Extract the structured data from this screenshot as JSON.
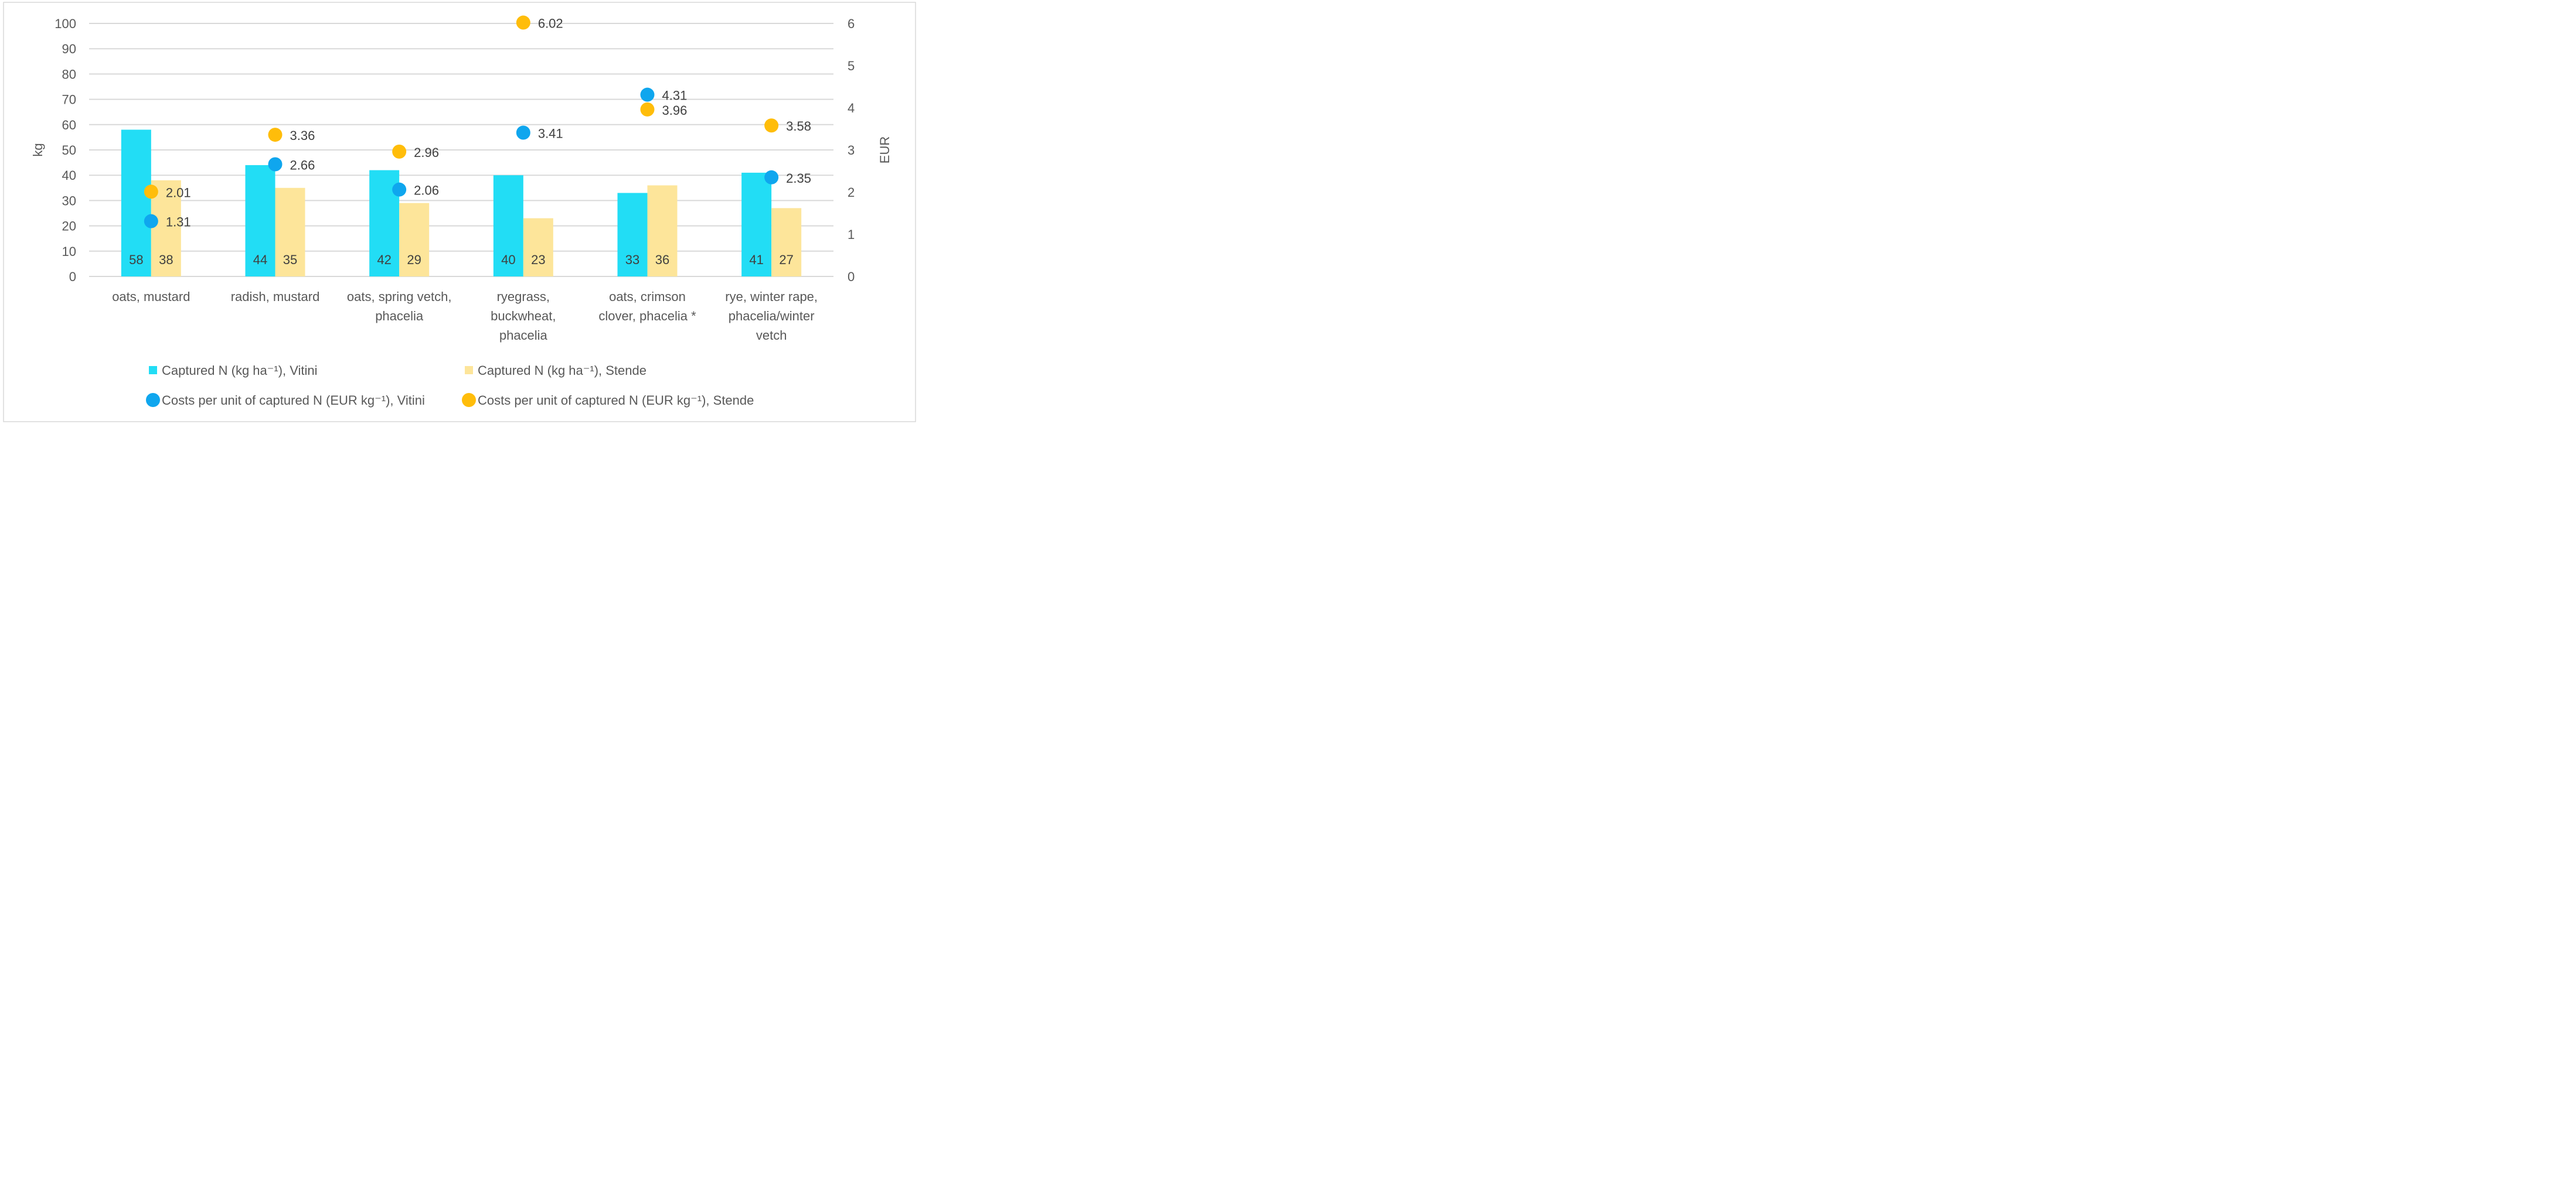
{
  "chart_data": {
    "type": "bar",
    "title": "",
    "ylabel_left": "kg",
    "ylabel_right": "EUR",
    "ylim_left": [
      0,
      100
    ],
    "ylim_right": [
      0,
      6
    ],
    "yticks_left": [
      "0",
      "10",
      "20",
      "30",
      "40",
      "50",
      "60",
      "70",
      "80",
      "90",
      "100"
    ],
    "yticks_right": [
      "0",
      "1",
      "2",
      "3",
      "4",
      "5",
      "6"
    ],
    "categories": [
      [
        "oats, mustard"
      ],
      [
        "radish, mustard"
      ],
      [
        "oats, spring vetch,",
        "phacelia"
      ],
      [
        "ryegrass,",
        "buckwheat,",
        "phacelia"
      ],
      [
        "oats, crimson",
        "clover, phacelia *"
      ],
      [
        "rye, winter rape,",
        "phacelia/winter",
        "vetch"
      ]
    ],
    "grid": true,
    "bar_series": [
      {
        "name": "Captured N (kg ha⁻¹), Vitini",
        "color": "#22DDF5",
        "axis": "left",
        "values": [
          58,
          44,
          42,
          40,
          33,
          41
        ],
        "labels": [
          "58",
          "44",
          "42",
          "40",
          "33",
          "41"
        ]
      },
      {
        "name": "Captured N (kg ha⁻¹), Stende",
        "color": "#FDE59A",
        "axis": "left",
        "values": [
          38,
          35,
          29,
          23,
          36,
          27
        ],
        "labels": [
          "38",
          "35",
          "29",
          "23",
          "36",
          "27"
        ]
      }
    ],
    "point_series": [
      {
        "name": "Costs per unit of captured N (EUR kg⁻¹), Vitini",
        "color": "#0FA6EE",
        "axis": "right",
        "values": [
          1.31,
          2.66,
          2.06,
          3.41,
          4.31,
          2.35
        ],
        "labels": [
          "1.31",
          "2.66",
          "2.06",
          "3.41",
          "4.31",
          "2.35"
        ]
      },
      {
        "name": "Costs per unit of captured N (EUR kg⁻¹), Stende",
        "color": "#FFBD0A",
        "axis": "right",
        "values": [
          2.01,
          3.36,
          2.96,
          6.02,
          3.96,
          3.58
        ],
        "labels": [
          "2.01",
          "3.36",
          "2.96",
          "6.02",
          "3.96",
          "3.58"
        ]
      }
    ],
    "legend": {
      "placement": "bottom",
      "items": [
        {
          "label": "Captured N (kg ha⁻¹), Vitini",
          "marker": "square",
          "color": "#22DDF5"
        },
        {
          "label": "Captured N (kg ha⁻¹), Stende",
          "marker": "square",
          "color": "#FDE59A"
        },
        {
          "label": "Costs per unit of captured N (EUR kg⁻¹), Vitini",
          "marker": "circle",
          "color": "#0FA6EE"
        },
        {
          "label": "Costs per unit of captured N (EUR kg⁻¹), Stende",
          "marker": "circle",
          "color": "#FFBD0A"
        }
      ]
    },
    "colors": {
      "axis_text": "#595959",
      "grid": "#D9D9D9",
      "frame": "#D9D9D9",
      "bar_label": "#404040"
    }
  }
}
